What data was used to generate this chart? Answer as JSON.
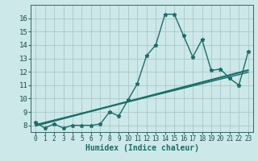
{
  "title": "",
  "xlabel": "Humidex (Indice chaleur)",
  "ylabel": "",
  "bg_color": "#cce8e8",
  "line_color": "#1a6e6a",
  "grid_color": "#aac8c8",
  "x_values": [
    0,
    1,
    2,
    3,
    4,
    5,
    6,
    7,
    8,
    9,
    10,
    11,
    12,
    13,
    14,
    15,
    16,
    17,
    18,
    19,
    20,
    21,
    22,
    23
  ],
  "y_main": [
    8.2,
    7.8,
    8.1,
    7.8,
    8.0,
    8.0,
    8.0,
    8.1,
    9.0,
    8.7,
    9.9,
    11.1,
    13.2,
    14.0,
    16.3,
    16.3,
    14.7,
    13.1,
    14.4,
    12.1,
    12.2,
    11.5,
    11.0,
    13.5
  ],
  "y_trend1": [
    8.05,
    8.22,
    8.39,
    8.56,
    8.73,
    8.9,
    9.07,
    9.24,
    9.41,
    9.58,
    9.75,
    9.92,
    10.09,
    10.26,
    10.43,
    10.6,
    10.77,
    10.94,
    11.11,
    11.28,
    11.45,
    11.62,
    11.79,
    11.96
  ],
  "y_trend2": [
    8.0,
    8.18,
    8.36,
    8.54,
    8.72,
    8.9,
    9.08,
    9.26,
    9.44,
    9.62,
    9.8,
    9.98,
    10.16,
    10.34,
    10.52,
    10.7,
    10.88,
    11.06,
    11.24,
    11.42,
    11.6,
    11.78,
    11.96,
    12.14
  ],
  "y_trend3": [
    7.95,
    8.13,
    8.31,
    8.49,
    8.67,
    8.85,
    9.03,
    9.21,
    9.39,
    9.57,
    9.75,
    9.93,
    10.11,
    10.29,
    10.47,
    10.65,
    10.83,
    11.01,
    11.19,
    11.37,
    11.55,
    11.73,
    11.91,
    12.09
  ],
  "ylim": [
    7.5,
    17.0
  ],
  "xlim": [
    -0.5,
    23.5
  ],
  "yticks": [
    8,
    9,
    10,
    11,
    12,
    13,
    14,
    15,
    16
  ],
  "xticks": [
    0,
    1,
    2,
    3,
    4,
    5,
    6,
    7,
    8,
    9,
    10,
    11,
    12,
    13,
    14,
    15,
    16,
    17,
    18,
    19,
    20,
    21,
    22,
    23
  ],
  "marker": "*",
  "marker_size": 3.5,
  "line_width": 1.0,
  "xlabel_fontsize": 7,
  "tick_fontsize": 6.5
}
